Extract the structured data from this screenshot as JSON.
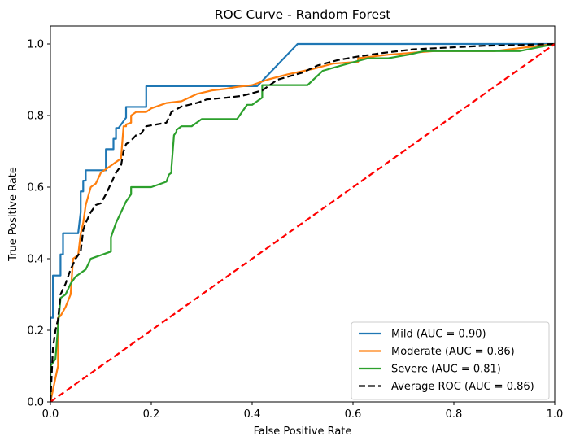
{
  "chart_data": {
    "type": "line",
    "title": "ROC Curve - Random Forest",
    "xlabel": "False Positive Rate",
    "ylabel": "True Positive Rate",
    "xlim": [
      0.0,
      1.0
    ],
    "ylim": [
      0.0,
      1.05
    ],
    "xticks": [
      "0.0",
      "0.2",
      "0.4",
      "0.6",
      "0.8",
      "1.0"
    ],
    "yticks": [
      "0.0",
      "0.2",
      "0.4",
      "0.6",
      "0.8",
      "1.0"
    ],
    "grid": false,
    "legend_position": "lower-right",
    "series": [
      {
        "name": "Mild (AUC = 0.90)",
        "color": "#1f77b4",
        "style": "solid",
        "x": [
          0,
          0,
          0.005,
          0.005,
          0.02,
          0.02,
          0.025,
          0.025,
          0.055,
          0.06,
          0.06,
          0.065,
          0.065,
          0.07,
          0.07,
          0.11,
          0.11,
          0.125,
          0.125,
          0.13,
          0.13,
          0.135,
          0.15,
          0.15,
          0.19,
          0.19,
          0.41,
          0.49,
          0.49,
          0.91,
          1.0
        ],
        "y": [
          0,
          0.235,
          0.235,
          0.353,
          0.353,
          0.412,
          0.412,
          0.471,
          0.471,
          0.53,
          0.588,
          0.588,
          0.618,
          0.618,
          0.647,
          0.647,
          0.706,
          0.706,
          0.735,
          0.735,
          0.765,
          0.765,
          0.794,
          0.824,
          0.824,
          0.882,
          0.882,
          1.0,
          1.0,
          1.0,
          1.0
        ]
      },
      {
        "name": "Moderate (AUC = 0.86)",
        "color": "#ff7f0e",
        "style": "solid",
        "x": [
          0,
          0.015,
          0.015,
          0.02,
          0.03,
          0.04,
          0.045,
          0.055,
          0.06,
          0.065,
          0.07,
          0.08,
          0.09,
          0.1,
          0.11,
          0.12,
          0.13,
          0.14,
          0.145,
          0.15,
          0.15,
          0.16,
          0.16,
          0.17,
          0.19,
          0.2,
          0.23,
          0.26,
          0.29,
          0.32,
          0.35,
          0.37,
          0.4,
          0.43,
          0.47,
          0.52,
          0.56,
          0.61,
          0.61,
          0.67,
          0.76,
          0.82,
          0.88,
          0.94,
          1.0
        ],
        "y": [
          0,
          0.1,
          0.235,
          0.24,
          0.265,
          0.3,
          0.4,
          0.41,
          0.47,
          0.5,
          0.55,
          0.6,
          0.61,
          0.64,
          0.65,
          0.66,
          0.67,
          0.68,
          0.77,
          0.77,
          0.775,
          0.78,
          0.8,
          0.81,
          0.81,
          0.82,
          0.835,
          0.84,
          0.86,
          0.87,
          0.875,
          0.88,
          0.885,
          0.9,
          0.915,
          0.93,
          0.945,
          0.95,
          0.96,
          0.97,
          0.98,
          0.98,
          0.98,
          0.99,
          1.0
        ]
      },
      {
        "name": "Severe (AUC = 0.81)",
        "color": "#2ca02c",
        "style": "solid",
        "x": [
          0,
          0,
          0.01,
          0.015,
          0.02,
          0.03,
          0.04,
          0.05,
          0.06,
          0.07,
          0.08,
          0.09,
          0.1,
          0.12,
          0.12,
          0.13,
          0.14,
          0.15,
          0.16,
          0.16,
          0.2,
          0.23,
          0.235,
          0.24,
          0.24,
          0.245,
          0.25,
          0.25,
          0.26,
          0.28,
          0.3,
          0.33,
          0.37,
          0.38,
          0.39,
          0.4,
          0.41,
          0.42,
          0.42,
          0.44,
          0.51,
          0.54,
          0.59,
          0.63,
          0.67,
          0.71,
          0.74,
          0.76,
          0.8,
          0.84,
          0.88,
          0.93,
          1.0
        ],
        "y": [
          0,
          0.1,
          0.12,
          0.21,
          0.29,
          0.3,
          0.33,
          0.35,
          0.36,
          0.37,
          0.4,
          0.405,
          0.41,
          0.42,
          0.46,
          0.5,
          0.53,
          0.56,
          0.58,
          0.6,
          0.6,
          0.615,
          0.635,
          0.64,
          0.655,
          0.745,
          0.755,
          0.76,
          0.77,
          0.77,
          0.79,
          0.79,
          0.79,
          0.81,
          0.83,
          0.83,
          0.84,
          0.85,
          0.885,
          0.885,
          0.885,
          0.925,
          0.945,
          0.96,
          0.96,
          0.97,
          0.98,
          0.98,
          0.98,
          0.98,
          0.98,
          0.98,
          1.0
        ]
      },
      {
        "name": "Average ROC (AUC = 0.86)",
        "color": "#000000",
        "style": "dashed",
        "x": [
          0,
          0.005,
          0.01,
          0.015,
          0.02,
          0.03,
          0.04,
          0.05,
          0.06,
          0.065,
          0.07,
          0.08,
          0.09,
          0.1,
          0.11,
          0.12,
          0.13,
          0.14,
          0.145,
          0.15,
          0.16,
          0.17,
          0.18,
          0.19,
          0.21,
          0.23,
          0.24,
          0.26,
          0.29,
          0.31,
          0.35,
          0.38,
          0.42,
          0.45,
          0.5,
          0.53,
          0.57,
          0.61,
          0.66,
          0.72,
          0.79,
          0.86,
          0.93,
          1.0
        ],
        "y": [
          0,
          0.15,
          0.2,
          0.23,
          0.3,
          0.33,
          0.37,
          0.4,
          0.42,
          0.48,
          0.5,
          0.53,
          0.55,
          0.555,
          0.58,
          0.61,
          0.64,
          0.66,
          0.7,
          0.72,
          0.73,
          0.745,
          0.75,
          0.77,
          0.775,
          0.78,
          0.81,
          0.825,
          0.835,
          0.845,
          0.85,
          0.855,
          0.87,
          0.9,
          0.92,
          0.94,
          0.955,
          0.965,
          0.975,
          0.985,
          0.99,
          0.995,
          0.997,
          1.0
        ]
      },
      {
        "name": "",
        "color": "#ff0000",
        "style": "dashed",
        "legend": false,
        "x": [
          0,
          1
        ],
        "y": [
          0,
          1
        ]
      }
    ]
  }
}
